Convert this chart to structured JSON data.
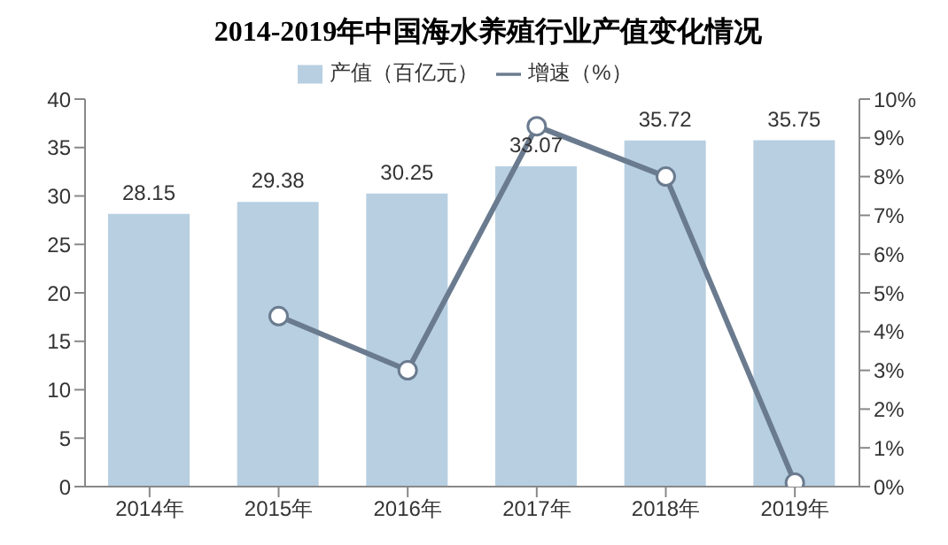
{
  "chart_data": {
    "type": "bar",
    "title": "2014-2019年中国海水养殖行业产值变化情况",
    "categories": [
      "2014年",
      "2015年",
      "2016年",
      "2017年",
      "2018年",
      "2019年"
    ],
    "series": [
      {
        "name": "产值（百亿元）",
        "color": "#b7cfe1",
        "values": [
          28.15,
          29.38,
          30.25,
          33.07,
          35.72,
          35.75
        ],
        "value_labels": [
          "28.15",
          "29.38",
          "30.25",
          "33.07",
          "35.72",
          "35.75"
        ]
      },
      {
        "name": "增速（%）",
        "type": "line",
        "axis": "y2",
        "color": "#6b7b8f",
        "values": [
          null,
          4.4,
          3.0,
          9.3,
          8.0,
          0.1
        ]
      }
    ],
    "ylim": [
      0,
      40
    ],
    "yticks": [
      0,
      5,
      10,
      15,
      20,
      25,
      30,
      35,
      40
    ],
    "y2lim": [
      0,
      10
    ],
    "y2ticks": [
      {
        "value": 0,
        "label": "0%"
      },
      {
        "value": 1,
        "label": "1%"
      },
      {
        "value": 2,
        "label": "2%"
      },
      {
        "value": 3,
        "label": "3%"
      },
      {
        "value": 4,
        "label": "4%"
      },
      {
        "value": 5,
        "label": "5%"
      },
      {
        "value": 6,
        "label": "6%"
      },
      {
        "value": 7,
        "label": "7%"
      },
      {
        "value": 8,
        "label": "8%"
      },
      {
        "value": 9,
        "label": "9%"
      },
      {
        "value": 10,
        "label": "10%"
      }
    ],
    "legend": "top",
    "marker": "circle",
    "grid": false
  }
}
